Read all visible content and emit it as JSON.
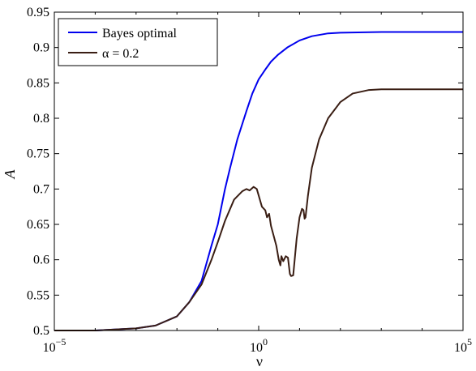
{
  "chart_data": {
    "type": "line",
    "xlabel": "ν",
    "ylabel": "A",
    "xscale": "log",
    "xlim": [
      1e-05,
      100000
    ],
    "ylim": [
      0.5,
      0.95
    ],
    "grid": false,
    "legend_position": "top-left",
    "x_ticks": [
      {
        "value": 1e-05,
        "base": "10",
        "exp": "−5"
      },
      {
        "value": 1,
        "base": "10",
        "exp": "0"
      },
      {
        "value": 100000,
        "base": "10",
        "exp": "5"
      }
    ],
    "y_ticks": [
      0.5,
      0.55,
      0.6,
      0.65,
      0.7,
      0.75,
      0.8,
      0.85,
      0.9,
      0.95
    ],
    "y_tick_labels": [
      "0.5",
      "0.55",
      "0.6",
      "0.65",
      "0.7",
      "0.75",
      "0.8",
      "0.85",
      "0.9",
      "0.95"
    ],
    "series": [
      {
        "name": "Bayes optimal",
        "color": "#0000ee",
        "points": [
          [
            1e-05,
            0.5
          ],
          [
            0.0001,
            0.5
          ],
          [
            0.001,
            0.503
          ],
          [
            0.003,
            0.507
          ],
          [
            0.01,
            0.52
          ],
          [
            0.02,
            0.54
          ],
          [
            0.04,
            0.57
          ],
          [
            0.07,
            0.62
          ],
          [
            0.1,
            0.65
          ],
          [
            0.15,
            0.7
          ],
          [
            0.2,
            0.73
          ],
          [
            0.3,
            0.77
          ],
          [
            0.5,
            0.81
          ],
          [
            0.7,
            0.835
          ],
          [
            1,
            0.855
          ],
          [
            1.5,
            0.87
          ],
          [
            2,
            0.88
          ],
          [
            3,
            0.89
          ],
          [
            5,
            0.9
          ],
          [
            10,
            0.91
          ],
          [
            20,
            0.916
          ],
          [
            50,
            0.92
          ],
          [
            100,
            0.921
          ],
          [
            1000,
            0.922
          ],
          [
            100000,
            0.922
          ]
        ]
      },
      {
        "name": "α = 0.2",
        "color": "#3a1e14",
        "points": [
          [
            1e-05,
            0.5
          ],
          [
            0.0001,
            0.5
          ],
          [
            0.001,
            0.503
          ],
          [
            0.003,
            0.507
          ],
          [
            0.01,
            0.52
          ],
          [
            0.02,
            0.54
          ],
          [
            0.04,
            0.565
          ],
          [
            0.07,
            0.6
          ],
          [
            0.1,
            0.625
          ],
          [
            0.15,
            0.655
          ],
          [
            0.25,
            0.685
          ],
          [
            0.4,
            0.697
          ],
          [
            0.5,
            0.7
          ],
          [
            0.6,
            0.698
          ],
          [
            0.75,
            0.703
          ],
          [
            0.9,
            0.7
          ],
          [
            1.2,
            0.675
          ],
          [
            1.45,
            0.67
          ],
          [
            1.6,
            0.66
          ],
          [
            1.8,
            0.665
          ],
          [
            2.0,
            0.648
          ],
          [
            2.3,
            0.635
          ],
          [
            2.7,
            0.62
          ],
          [
            3.1,
            0.6
          ],
          [
            3.4,
            0.592
          ],
          [
            3.6,
            0.605
          ],
          [
            4.0,
            0.598
          ],
          [
            4.6,
            0.605
          ],
          [
            5.2,
            0.603
          ],
          [
            5.8,
            0.58
          ],
          [
            6.2,
            0.577
          ],
          [
            7.0,
            0.578
          ],
          [
            7.6,
            0.6
          ],
          [
            8.5,
            0.63
          ],
          [
            10,
            0.66
          ],
          [
            11.5,
            0.672
          ],
          [
            12.5,
            0.67
          ],
          [
            13.3,
            0.658
          ],
          [
            14,
            0.66
          ],
          [
            16,
            0.69
          ],
          [
            20,
            0.73
          ],
          [
            30,
            0.77
          ],
          [
            50,
            0.8
          ],
          [
            100,
            0.823
          ],
          [
            200,
            0.835
          ],
          [
            500,
            0.84
          ],
          [
            1000,
            0.841
          ],
          [
            100000,
            0.841
          ]
        ]
      }
    ]
  }
}
